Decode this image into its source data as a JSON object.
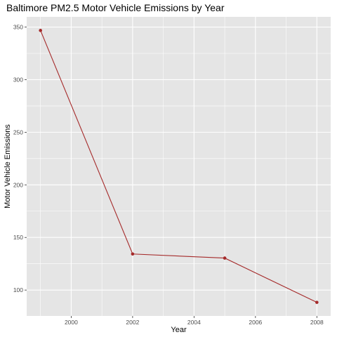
{
  "chart_data": {
    "type": "line",
    "title": "Baltimore PM2.5 Motor Vehicle Emissions by Year",
    "xlabel": "Year",
    "ylabel": "Motor Vehicle Emissions",
    "x": [
      1999,
      2002,
      2005,
      2008
    ],
    "series": [
      {
        "values": [
          346.8,
          134.3,
          130.4,
          88.3
        ],
        "color": "#a52a2a"
      }
    ],
    "xlim": [
      1998.55,
      2008.45
    ],
    "ylim": [
      75.4,
      359.7
    ],
    "x_ticks": [
      2000,
      2002,
      2004,
      2006,
      2008
    ],
    "x_tick_labels": [
      "2000",
      "2002",
      "2004",
      "2006",
      "2008"
    ],
    "y_ticks": [
      100,
      150,
      200,
      250,
      300,
      350
    ],
    "y_tick_labels": [
      "100",
      "150",
      "200",
      "250",
      "300",
      "350"
    ],
    "x_minor_ticks": [
      1999,
      2001,
      2003,
      2005,
      2007
    ],
    "y_minor_ticks": [
      125,
      175,
      225,
      275,
      325
    ],
    "grid": true,
    "legend": "none",
    "colors": {
      "panel_background": "#e5e5e5",
      "grid": "#ffffff",
      "line": "#a52a2a"
    }
  }
}
